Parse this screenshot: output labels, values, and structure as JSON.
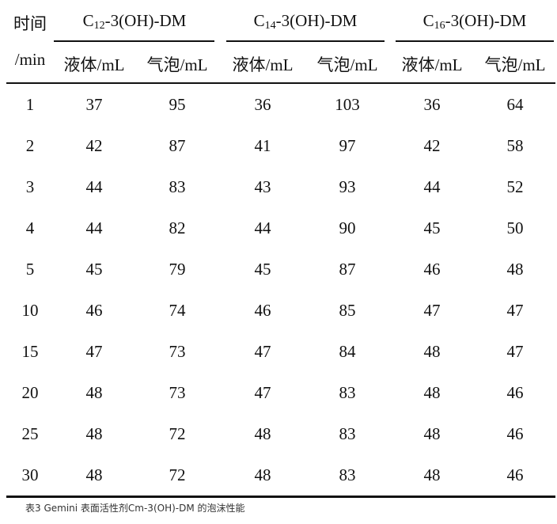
{
  "table": {
    "time_header": [
      "时间",
      "/min"
    ],
    "groups": [
      {
        "prefix": "C",
        "sub": "12",
        "suffix": "-3(OH)-DM"
      },
      {
        "prefix": "C",
        "sub": "14",
        "suffix": "-3(OH)-DM"
      },
      {
        "prefix": "C",
        "sub": "16",
        "suffix": "-3(OH)-DM"
      }
    ],
    "subheaders": [
      "液体/mL",
      "气泡/mL",
      "液体/mL",
      "气泡/mL",
      "液体/mL",
      "气泡/mL"
    ],
    "rows": [
      [
        "1",
        "37",
        "95",
        "36",
        "103",
        "36",
        "64"
      ],
      [
        "2",
        "42",
        "87",
        "41",
        "97",
        "42",
        "58"
      ],
      [
        "3",
        "44",
        "83",
        "43",
        "93",
        "44",
        "52"
      ],
      [
        "4",
        "44",
        "82",
        "44",
        "90",
        "45",
        "50"
      ],
      [
        "5",
        "45",
        "79",
        "45",
        "87",
        "46",
        "48"
      ],
      [
        "10",
        "46",
        "74",
        "46",
        "85",
        "47",
        "47"
      ],
      [
        "15",
        "47",
        "73",
        "47",
        "84",
        "48",
        "47"
      ],
      [
        "20",
        "48",
        "73",
        "47",
        "83",
        "48",
        "46"
      ],
      [
        "25",
        "48",
        "72",
        "48",
        "83",
        "48",
        "46"
      ],
      [
        "30",
        "48",
        "72",
        "48",
        "83",
        "48",
        "46"
      ]
    ]
  },
  "caption": "表3 Gemini 表面活性剂Cm-3(OH)-DM 的泡沫性能"
}
